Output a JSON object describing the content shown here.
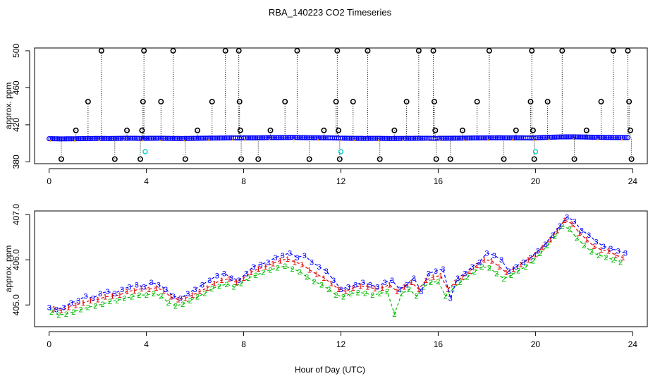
{
  "figure": {
    "title": "RBA_140223  CO2 Timeseries",
    "xlabel": "Hour of Day (UTC)"
  },
  "colors": {
    "axis": "#000000",
    "blue": "#0000ff",
    "red": "#dd0000",
    "green": "#00bb00",
    "cyan": "#00cccc",
    "orange": "#ff8800",
    "black_marker": "#000000"
  },
  "chart_data": [
    {
      "type": "scatter",
      "title": "",
      "xlabel": "",
      "ylabel": "approx. ppm",
      "xlim": [
        -0.6,
        24.6
      ],
      "ylim": [
        378,
        503
      ],
      "xticks": [
        0,
        4,
        8,
        12,
        16,
        20,
        24
      ],
      "xtick_labels": [
        "0",
        "4",
        "8",
        "12",
        "16",
        "20",
        "24"
      ],
      "yticks": [
        380,
        420,
        460,
        500
      ],
      "ytick_labels": [
        "380",
        "420",
        "460",
        "500"
      ],
      "baseline": {
        "name": "",
        "color": "blue",
        "x": [
          0,
          0.5,
          1,
          1.5,
          2,
          2.5,
          3,
          3.5,
          3.8,
          4,
          4.5,
          5,
          5.5,
          6,
          6.5,
          7,
          7.5,
          7.9,
          8,
          8.5,
          9,
          9.5,
          10,
          10.5,
          11,
          11.5,
          11.9,
          12,
          12.5,
          13,
          13.5,
          14,
          14.5,
          15,
          15.5,
          15.9,
          16,
          16.5,
          17,
          17.5,
          18,
          18.5,
          19,
          19.5,
          19.9,
          20,
          20.5,
          21,
          21.5,
          22,
          22.5,
          23,
          23.5,
          23.8
        ],
        "y": [
          405.0,
          404.8,
          404.9,
          405.1,
          405.3,
          405.2,
          405.4,
          405.5,
          405.3,
          405.4,
          405.5,
          405.3,
          405.2,
          405.4,
          405.6,
          405.7,
          405.9,
          405.8,
          405.9,
          405.9,
          406.1,
          406.2,
          406.3,
          406.1,
          406.0,
          405.9,
          405.7,
          405.6,
          405.4,
          405.3,
          405.4,
          405.2,
          405.3,
          405.4,
          405.5,
          405.3,
          405.4,
          405.5,
          405.6,
          405.8,
          405.9,
          406.0,
          405.9,
          405.9,
          405.8,
          406.0,
          406.4,
          406.9,
          407.0,
          406.8,
          406.5,
          406.3,
          406.2,
          406.2
        ]
      },
      "flags": {
        "name": "",
        "color": "black_marker",
        "x": [
          0.5,
          1.1,
          1.6,
          2.15,
          2.7,
          3.2,
          3.75,
          3.82,
          3.86,
          3.9,
          4.6,
          5.1,
          5.6,
          6.1,
          6.7,
          7.25,
          7.8,
          7.83,
          7.86,
          7.9,
          8.6,
          9.1,
          9.7,
          10.2,
          10.7,
          11.3,
          11.8,
          11.85,
          11.9,
          11.95,
          12.5,
          13.1,
          13.6,
          14.2,
          14.7,
          15.2,
          15.8,
          15.84,
          15.88,
          15.92,
          16.5,
          17.0,
          17.6,
          18.1,
          18.7,
          19.2,
          19.8,
          19.85,
          19.9,
          19.95,
          20.5,
          21.1,
          21.6,
          22.1,
          22.7,
          23.2,
          23.8,
          23.85,
          23.9,
          23.95
        ],
        "y": [
          383,
          414,
          445,
          500,
          383,
          414,
          383,
          414,
          445,
          500,
          445,
          500,
          383,
          414,
          445,
          500,
          500,
          445,
          414,
          383,
          383,
          414,
          445,
          500,
          383,
          414,
          445,
          500,
          414,
          383,
          445,
          500,
          383,
          414,
          445,
          500,
          500,
          445,
          414,
          383,
          383,
          414,
          445,
          500,
          383,
          414,
          445,
          500,
          414,
          383,
          445,
          500,
          383,
          414,
          445,
          500,
          500,
          445,
          414,
          383
        ]
      },
      "cyan_points": {
        "name": "",
        "color": "cyan",
        "x": [
          3.95,
          12.0,
          20.0
        ],
        "y": [
          391,
          391,
          391
        ]
      }
    },
    {
      "type": "line",
      "title": "",
      "xlabel": "",
      "ylabel": "approx. ppm",
      "xlim": [
        -0.6,
        24.6
      ],
      "ylim": [
        404.52,
        407.08
      ],
      "xticks": [
        0,
        4,
        8,
        12,
        16,
        20,
        24
      ],
      "xtick_labels": [
        "0",
        "4",
        "8",
        "12",
        "16",
        "20",
        "24"
      ],
      "yticks": [
        405.0,
        406.0,
        407.0
      ],
      "ytick_labels": [
        "405.0",
        "406.0",
        "407.0"
      ],
      "series": [
        {
          "name": "",
          "marker": "3",
          "color": "blue",
          "x": [
            0,
            0.3,
            0.6,
            0.9,
            1.2,
            1.5,
            1.8,
            2.1,
            2.4,
            2.7,
            3.0,
            3.3,
            3.6,
            3.9,
            4.2,
            4.5,
            4.8,
            5.1,
            5.4,
            5.7,
            6.0,
            6.3,
            6.6,
            6.9,
            7.2,
            7.5,
            7.8,
            8.1,
            8.4,
            8.7,
            9.0,
            9.3,
            9.6,
            9.9,
            10.2,
            10.5,
            10.8,
            11.1,
            11.4,
            11.7,
            12.0,
            12.3,
            12.6,
            12.9,
            13.2,
            13.5,
            13.8,
            14.1,
            14.4,
            14.7,
            15.0,
            15.3,
            15.6,
            15.9,
            16.2,
            16.5,
            16.8,
            17.1,
            17.4,
            17.7,
            18.0,
            18.3,
            18.6,
            18.9,
            19.2,
            19.5,
            19.8,
            20.1,
            20.4,
            20.7,
            21.0,
            21.3,
            21.6,
            21.9,
            22.2,
            22.5,
            22.8,
            23.1,
            23.4,
            23.7
          ],
          "y": [
            404.95,
            404.9,
            404.95,
            405.05,
            405.1,
            405.2,
            405.15,
            405.25,
            405.3,
            405.25,
            405.35,
            405.4,
            405.45,
            405.4,
            405.5,
            405.45,
            405.35,
            405.2,
            405.15,
            405.25,
            405.35,
            405.45,
            405.55,
            405.65,
            405.7,
            405.6,
            405.55,
            405.7,
            405.85,
            405.9,
            405.95,
            406.05,
            406.1,
            406.15,
            406.05,
            406.1,
            405.95,
            405.85,
            405.75,
            405.55,
            405.35,
            405.4,
            405.45,
            405.5,
            405.45,
            405.4,
            405.5,
            405.55,
            405.35,
            405.45,
            405.6,
            405.3,
            405.7,
            405.75,
            405.8,
            405.15,
            405.6,
            405.7,
            405.85,
            405.95,
            406.15,
            406.1,
            406.0,
            405.75,
            405.85,
            405.95,
            406.05,
            406.2,
            406.35,
            406.55,
            406.75,
            406.95,
            406.85,
            406.65,
            406.55,
            406.4,
            406.3,
            406.25,
            406.2,
            406.15
          ]
        },
        {
          "name": "",
          "marker": "1",
          "color": "red",
          "x": [
            0.2,
            0.5,
            0.8,
            1.1,
            1.4,
            1.7,
            2.0,
            2.3,
            2.6,
            2.9,
            3.2,
            3.5,
            3.8,
            4.1,
            4.4,
            4.7,
            5.0,
            5.3,
            5.6,
            5.9,
            6.2,
            6.5,
            6.8,
            7.1,
            7.4,
            7.7,
            8.0,
            8.3,
            8.6,
            8.9,
            9.2,
            9.5,
            9.8,
            10.1,
            10.4,
            10.7,
            11.0,
            11.3,
            11.6,
            11.9,
            12.2,
            12.5,
            12.8,
            13.1,
            13.4,
            13.7,
            14.0,
            14.3,
            14.6,
            14.9,
            15.2,
            15.5,
            15.8,
            16.1,
            16.4,
            16.7,
            17.0,
            17.3,
            17.6,
            17.9,
            18.2,
            18.5,
            18.8,
            19.1,
            19.4,
            19.7,
            20.0,
            20.3,
            20.6,
            20.9,
            21.2,
            21.5,
            21.8,
            22.1,
            22.4,
            22.7,
            23.0,
            23.3,
            23.6
          ],
          "y": [
            404.92,
            404.88,
            404.95,
            405.0,
            405.05,
            405.1,
            405.12,
            405.18,
            405.2,
            405.22,
            405.3,
            405.32,
            405.36,
            405.35,
            405.38,
            405.32,
            405.18,
            405.12,
            405.15,
            405.22,
            405.3,
            405.38,
            405.48,
            405.55,
            405.58,
            405.5,
            405.6,
            405.72,
            405.8,
            405.85,
            405.92,
            405.98,
            406.02,
            405.95,
            405.9,
            405.78,
            405.68,
            405.6,
            405.48,
            405.35,
            405.3,
            405.38,
            405.42,
            405.4,
            405.36,
            405.38,
            405.45,
            405.3,
            405.4,
            405.5,
            405.35,
            405.55,
            405.62,
            405.65,
            405.35,
            405.5,
            405.62,
            405.75,
            405.88,
            406.0,
            405.98,
            405.85,
            405.72,
            405.8,
            405.9,
            406.0,
            406.12,
            406.28,
            406.45,
            406.65,
            406.88,
            406.8,
            406.6,
            406.45,
            406.3,
            406.22,
            406.2,
            406.1,
            406.05
          ]
        },
        {
          "name": "",
          "marker": "2",
          "color": "green",
          "x": [
            0.1,
            0.4,
            0.7,
            1.0,
            1.3,
            1.6,
            1.9,
            2.2,
            2.5,
            2.8,
            3.1,
            3.4,
            3.7,
            4.0,
            4.3,
            4.6,
            4.9,
            5.2,
            5.5,
            5.8,
            6.1,
            6.4,
            6.7,
            7.0,
            7.3,
            7.6,
            7.9,
            8.2,
            8.5,
            8.8,
            9.1,
            9.4,
            9.7,
            10.0,
            10.3,
            10.6,
            10.9,
            11.2,
            11.5,
            11.8,
            12.1,
            12.4,
            12.7,
            13.0,
            13.3,
            13.6,
            13.9,
            14.2,
            14.5,
            14.8,
            15.1,
            15.4,
            15.7,
            16.0,
            16.3,
            16.6,
            16.9,
            17.2,
            17.5,
            17.8,
            18.1,
            18.4,
            18.7,
            19.0,
            19.3,
            19.6,
            19.9,
            20.2,
            20.5,
            20.8,
            21.1,
            21.4,
            21.7,
            22.0,
            22.3,
            22.6,
            22.9,
            23.2,
            23.5
          ],
          "y": [
            404.85,
            404.78,
            404.8,
            404.85,
            404.9,
            404.95,
            404.98,
            405.02,
            405.08,
            405.1,
            405.15,
            405.18,
            405.22,
            405.22,
            405.25,
            405.2,
            405.05,
            404.98,
            405.02,
            405.1,
            405.18,
            405.26,
            405.36,
            405.42,
            405.46,
            405.4,
            405.48,
            405.6,
            405.66,
            405.72,
            405.78,
            405.82,
            405.86,
            405.8,
            405.74,
            405.62,
            405.52,
            405.45,
            405.35,
            405.22,
            405.18,
            405.25,
            405.28,
            405.26,
            405.22,
            405.25,
            405.3,
            404.8,
            405.25,
            405.35,
            405.2,
            405.4,
            405.5,
            405.52,
            405.2,
            405.36,
            405.5,
            405.62,
            405.74,
            405.85,
            405.82,
            405.7,
            405.58,
            405.66,
            405.76,
            405.85,
            405.98,
            406.14,
            406.32,
            406.52,
            406.75,
            406.68,
            406.48,
            406.32,
            406.18,
            406.1,
            406.06,
            406.0,
            405.95
          ]
        }
      ]
    }
  ]
}
